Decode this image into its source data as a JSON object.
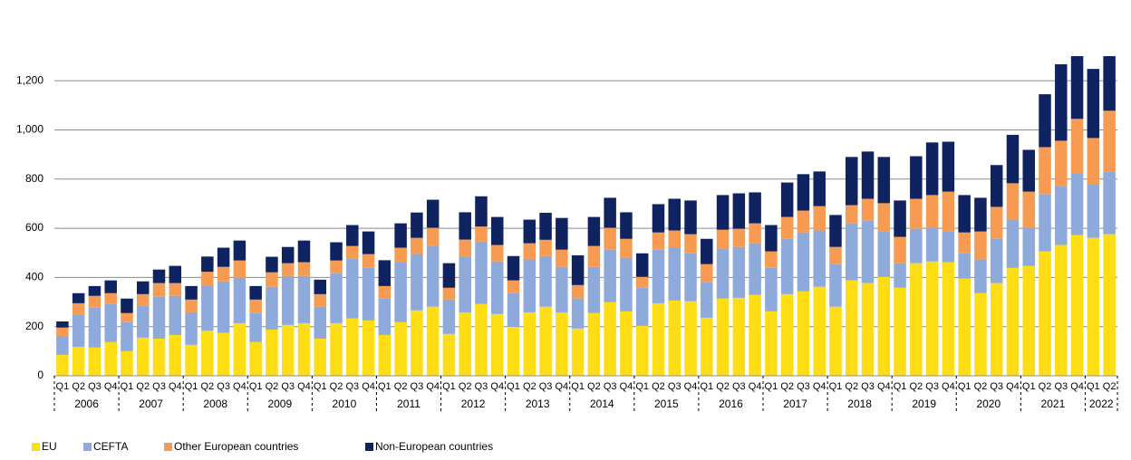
{
  "chart_data": {
    "type": "stacked_bar",
    "categories": [
      "Q1",
      "Q2",
      "Q3",
      "Q4",
      "Q1",
      "Q2",
      "Q3",
      "Q4",
      "Q1",
      "Q2",
      "Q3",
      "Q4",
      "Q1",
      "Q2",
      "Q3",
      "Q4",
      "Q1",
      "Q2",
      "Q3",
      "Q4",
      "Q1",
      "Q2",
      "Q3",
      "Q4",
      "Q1",
      "Q2",
      "Q3",
      "Q4",
      "Q1",
      "Q2",
      "Q3",
      "Q4",
      "Q1",
      "Q2",
      "Q3",
      "Q4",
      "Q1",
      "Q2",
      "Q3",
      "Q4",
      "Q1",
      "Q2",
      "Q3",
      "Q4",
      "Q1",
      "Q2",
      "Q3",
      "Q4",
      "Q1",
      "Q2",
      "Q3",
      "Q4",
      "Q1",
      "Q2",
      "Q3",
      "Q4",
      "Q1",
      "Q2",
      "Q3",
      "Q4",
      "Q1",
      "Q2",
      "Q3",
      "Q4",
      "Q1",
      "Q2"
    ],
    "years": [
      "2006",
      "2007",
      "2008",
      "2009",
      "2010",
      "2011",
      "2012",
      "2013",
      "2014",
      "2015",
      "2016",
      "2017",
      "2018",
      "2019",
      "2020",
      "2021",
      "2022"
    ],
    "series": [
      {
        "name": "EU",
        "color": "#ffdd15",
        "values": [
          85,
          118,
          115,
          137,
          100,
          155,
          151,
          166,
          126,
          183,
          175,
          214,
          137,
          188,
          207,
          214,
          151,
          214,
          233,
          225,
          166,
          218,
          266,
          281,
          170,
          258,
          292,
          251,
          199,
          258,
          281,
          258,
          192,
          255,
          299,
          262,
          203,
          295,
          306,
          303,
          236,
          314,
          317,
          329,
          262,
          332,
          343,
          362,
          281,
          388,
          377,
          402,
          358,
          458,
          465,
          462,
          395,
          336,
          377,
          439,
          447,
          506,
          532,
          572,
          561,
          576
        ]
      },
      {
        "name": "CEFTA",
        "color": "#8eaadb",
        "values": [
          77,
          129,
          162,
          155,
          118,
          129,
          170,
          159,
          132,
          185,
          209,
          185,
          118,
          174,
          199,
          192,
          130,
          203,
          243,
          214,
          148,
          244,
          229,
          247,
          140,
          226,
          254,
          214,
          137,
          215,
          206,
          185,
          122,
          188,
          214,
          218,
          155,
          218,
          215,
          195,
          144,
          203,
          207,
          210,
          177,
          225,
          240,
          229,
          173,
          232,
          254,
          185,
          100,
          140,
          137,
          125,
          103,
          137,
          180,
          196,
          155,
          233,
          240,
          251,
          218,
          255
        ]
      },
      {
        "name": "Other European countries",
        "color": "#f79a52",
        "values": [
          34,
          48,
          48,
          44,
          37,
          48,
          56,
          52,
          52,
          55,
          59,
          70,
          55,
          59,
          52,
          56,
          51,
          52,
          52,
          56,
          51,
          59,
          66,
          74,
          48,
          70,
          61,
          67,
          52,
          66,
          66,
          70,
          55,
          85,
          89,
          77,
          44,
          70,
          70,
          78,
          74,
          77,
          74,
          81,
          67,
          89,
          89,
          99,
          70,
          74,
          89,
          115,
          107,
          122,
          133,
          162,
          85,
          114,
          130,
          148,
          147,
          191,
          184,
          222,
          188,
          247
        ]
      },
      {
        "name": "Non-European countries",
        "color": "#0f2361",
        "values": [
          25,
          41,
          40,
          52,
          59,
          52,
          55,
          70,
          55,
          62,
          78,
          81,
          55,
          63,
          66,
          88,
          59,
          74,
          85,
          92,
          105,
          99,
          103,
          114,
          100,
          111,
          123,
          114,
          99,
          96,
          110,
          129,
          121,
          118,
          122,
          108,
          96,
          115,
          129,
          137,
          103,
          141,
          144,
          126,
          107,
          140,
          148,
          141,
          130,
          196,
          192,
          188,
          148,
          173,
          214,
          203,
          152,
          137,
          170,
          197,
          170,
          215,
          311,
          255,
          281,
          222
        ]
      }
    ],
    "ylim": [
      0,
      1300
    ],
    "yticks": [
      0,
      200,
      400,
      600,
      800,
      {
        "value": 1000,
        "label": "1,000"
      },
      {
        "value": 1200,
        "label": "1,200"
      }
    ],
    "grid": true,
    "legend": "bottom"
  }
}
